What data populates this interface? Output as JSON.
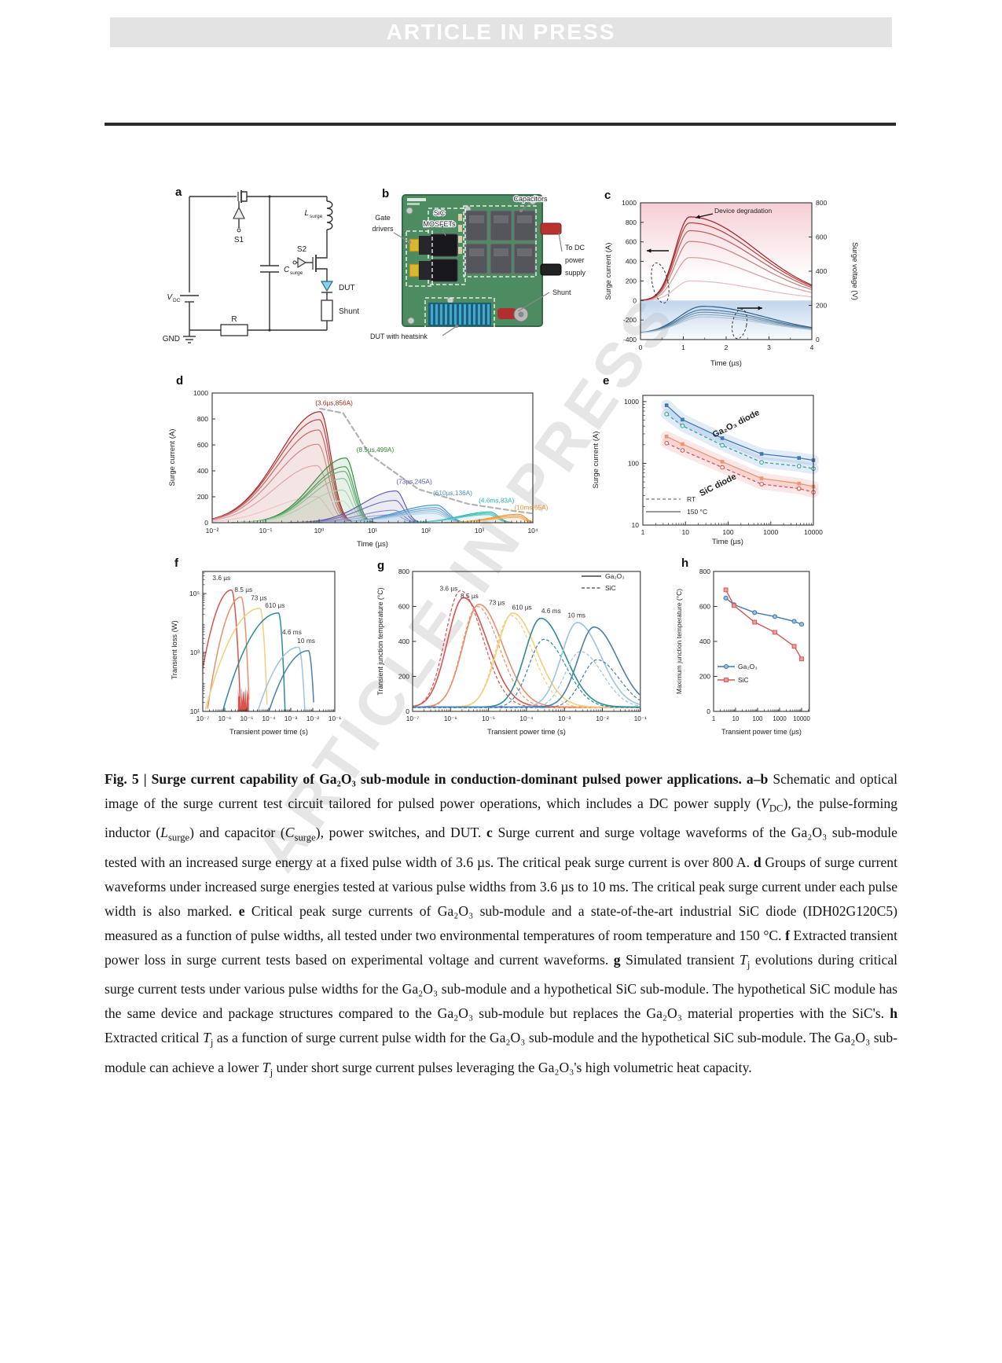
{
  "page": {
    "banner_text": "ARTICLE IN PRESS",
    "watermark_text": "ARTICLE IN PRESS"
  },
  "figure": {
    "panel_labels": {
      "a": "a",
      "b": "b",
      "c": "c",
      "d": "d",
      "e": "e",
      "f": "f",
      "g": "g",
      "h": "h"
    },
    "panels": {
      "a": {
        "texts": {
          "vdc_main": "V",
          "vdc_sub": "DC",
          "s1": "S1",
          "s2": "S2",
          "l_main": "L",
          "l_sub": "surge",
          "c_main": "C",
          "c_sub": "surge",
          "dut": "DUT",
          "shunt": "Shunt",
          "r": "R",
          "gnd": "GND"
        }
      },
      "b": {
        "callouts": {
          "gate_drivers": [
            "Gate",
            "drivers"
          ],
          "sic_mosfets": [
            "SiC",
            "MOSFETs"
          ],
          "capacitors": "Capacitors",
          "to_dc": [
            "To DC",
            "power",
            "supply"
          ],
          "shunt": "Shunt",
          "dut_heatsink": "DUT with heatsink"
        }
      }
    },
    "caption_runs": [
      {
        "t": "Fig. 5 | Surge current capability of Ga₂O₃ sub-module in conduction-dominant pulsed power applications. ",
        "b": 1
      },
      {
        "t": "a–b",
        "b": 1
      },
      {
        "t": " Schematic and optical image of the surge current test circuit tailored for pulsed power operations, which includes a DC power supply ("
      },
      {
        "t": "V",
        "i": 1
      },
      {
        "t": "DC",
        "s": 1
      },
      {
        "t": "), the pulse-forming inductor ("
      },
      {
        "t": "L",
        "i": 1
      },
      {
        "t": "surge",
        "s": 1
      },
      {
        "t": ") and capacitor ("
      },
      {
        "t": "C",
        "i": 1
      },
      {
        "t": "surge",
        "s": 1
      },
      {
        "t": "), power switches, and DUT. "
      },
      {
        "t": "c",
        "b": 1
      },
      {
        "t": " Surge current and surge voltage waveforms of the Ga₂O₃ sub-module tested with an increased surge energy at a fixed pulse width of 3.6 µs. The critical peak surge current is over 800 A. "
      },
      {
        "t": "d",
        "b": 1
      },
      {
        "t": " Groups of surge current waveforms under increased surge energies tested at various pulse widths from 3.6 µs to 10 ms. The critical peak surge current under each pulse width is also marked. "
      },
      {
        "t": "e",
        "b": 1
      },
      {
        "t": " Critical peak surge currents of Ga₂O₃ sub-module and a state-of-the-art industrial SiC diode (IDH02G120C5) measured as a function of pulse widths, all tested under two environmental temperatures of room temperature and 150 °C. "
      },
      {
        "t": "f",
        "b": 1
      },
      {
        "t": " Extracted transient power loss in surge current tests based on experimental voltage and current waveforms. "
      },
      {
        "t": "g",
        "b": 1
      },
      {
        "t": " Simulated transient "
      },
      {
        "t": "T",
        "i": 1
      },
      {
        "t": "j",
        "s": 1
      },
      {
        "t": " evolutions during critical surge current tests under various pulse widths for the Ga₂O₃ sub-module and a hypothetical SiC sub-module. The hypothetical SiC module has the same device and package structures compared to the Ga₂O₃ sub-module but replaces the Ga₂O₃ material properties with the SiC's. "
      },
      {
        "t": "h",
        "b": 1
      },
      {
        "t": " Extracted critical "
      },
      {
        "t": "T",
        "i": 1
      },
      {
        "t": "j",
        "s": 1
      },
      {
        "t": " as a function of surge current pulse width for the Ga₂O₃ sub-module and the hypothetical SiC sub-module. The Ga₂O₃ sub-module can achieve a lower "
      },
      {
        "t": "T",
        "i": 1
      },
      {
        "t": "j",
        "s": 1
      },
      {
        "t": " under short surge current pulses leveraging the Ga₂O₃'s high volumetric heat capacity."
      }
    ]
  },
  "chart_data": [
    {
      "id": "c",
      "type": "line",
      "xlabel": "Time (µs)",
      "ylabel_left": "Surge current (A)",
      "ylabel_right": "Surge voltage (V)",
      "xlim": [
        0,
        4
      ],
      "ylim_left": [
        -400,
        1000
      ],
      "ylim_right": [
        0,
        800
      ],
      "xticks": [
        0,
        1,
        2,
        3,
        4
      ],
      "yticks_left": [
        1000,
        800,
        600,
        400,
        200,
        0,
        -200,
        -400
      ],
      "yticks_right": [
        800,
        600,
        400,
        200,
        0
      ],
      "annotation": "Device degradation",
      "current_peak_time_us": 1.15,
      "current_peaks": [
        856,
        795,
        715,
        605,
        440,
        200
      ],
      "voltage_baseline_leftscale": -335,
      "voltage_bumps_leftscale": [
        -60,
        -95,
        -120,
        -145,
        -168
      ],
      "color_current": "#a82222",
      "color_voltage": "#2a5d88"
    },
    {
      "id": "d",
      "type": "line",
      "xlabel": "Time (µs)",
      "ylabel": "Surge current (A)",
      "xscale": "log",
      "xlim_log": [
        -2,
        4
      ],
      "ylim": [
        0,
        1000
      ],
      "xtick_labels": [
        "10⁻²",
        "10⁻¹",
        "10⁰",
        "10¹",
        "10²",
        "10³",
        "10⁴"
      ],
      "yticks": [
        0,
        200,
        400,
        600,
        800,
        1000
      ],
      "families": [
        {
          "label": "3.6 µs",
          "color": "#a82222",
          "tp": 0.02,
          "wL": 0.78,
          "wR": 0.2,
          "peaks": [
            856,
            795,
            715,
            605,
            440,
            200
          ],
          "annotation": "(3.6µs,856A)",
          "ann_color": "#9c2a1a",
          "ann_at": [
            0.28,
            905
          ]
        },
        {
          "label": "8.5 µs",
          "color": "#2e8b3a",
          "tp": 0.5,
          "wL": 0.62,
          "wR": 0.17,
          "peaks": [
            499,
            432,
            396,
            341,
            252,
            168
          ],
          "annotation": "(8.5µs,499A)",
          "ann_color": "#2e8b3a",
          "ann_at": [
            1.05,
            545
          ]
        },
        {
          "label": "73 µs",
          "color": "#5a5aa8",
          "tp": 1.44,
          "wL": 0.62,
          "wR": 0.16,
          "peaks": [
            245,
            172,
            96,
            62
          ],
          "annotation": "(73µs,245A)",
          "ann_color": "#5a5aa8",
          "ann_at": [
            1.78,
            300
          ]
        },
        {
          "label": "610 µs",
          "color": "#4a90c8",
          "tp": 2.2,
          "wL": 0.72,
          "wR": 0.2,
          "peaks": [
            136,
            116,
            100,
            86,
            72
          ],
          "annotation": "(610µs,136A)",
          "ann_color": "#4a90c8",
          "ann_at": [
            2.5,
            212
          ]
        },
        {
          "label": "4.6 ms",
          "color": "#26b5ad",
          "tp": 3.2,
          "wL": 0.56,
          "wR": 0.15,
          "peaks": [
            83,
            72,
            62
          ],
          "annotation": "(4.6ms,83A)",
          "ann_color": "#26b5ad",
          "ann_at": [
            3.32,
            155
          ]
        },
        {
          "label": "10 ms",
          "color": "#f0922e",
          "tp": 3.74,
          "wL": 0.5,
          "wR": 0.12,
          "peaks": [
            65,
            52,
            40
          ],
          "annotation": "(10ms,65A)",
          "ann_color": "#f0922e",
          "ann_at": [
            3.97,
            100
          ]
        }
      ],
      "envelope": [
        [
          0.02,
          880
        ],
        [
          0.45,
          845
        ],
        [
          0.95,
          525
        ],
        [
          1.86,
          258
        ],
        [
          2.79,
          145
        ],
        [
          3.66,
          90
        ],
        [
          3.98,
          72
        ]
      ]
    },
    {
      "id": "e",
      "type": "scatter-line",
      "xlabel": "Time (µs)",
      "ylabel": "Surge current (A)",
      "xscale": "log",
      "yscale": "log",
      "xtick_labels": [
        "1",
        "10",
        "100",
        "1000",
        "10000"
      ],
      "ytick_labels": [
        "10",
        "100",
        "1000"
      ],
      "x_us": [
        3.6,
        8.5,
        73,
        610,
        4600,
        10000
      ],
      "series": [
        {
          "name": "Ga₂O₃ diode 150 °C",
          "color": "#3d7ab5",
          "style": "solid",
          "marker": "square",
          "halo": "rgba(125,165,215,0.22)",
          "values": [
            870,
            510,
            255,
            142,
            122,
            112
          ]
        },
        {
          "name": "Ga₂O₃ diode RT",
          "color": "#2fa8a0",
          "style": "dashed",
          "marker": "circle",
          "halo": "rgba(125,165,215,0.22)",
          "values": [
            625,
            405,
            196,
            104,
            90,
            82
          ]
        },
        {
          "name": "SiC diode 150 °C",
          "color": "#ef9569",
          "style": "solid",
          "marker": "square",
          "halo": "rgba(240,160,160,0.25)",
          "values": [
            272,
            205,
            106,
            57,
            47,
            42
          ]
        },
        {
          "name": "SiC diode RT",
          "color": "#d9534f",
          "style": "dashed",
          "marker": "circle",
          "halo": "rgba(240,160,160,0.25)",
          "values": [
            212,
            162,
            86,
            46,
            39,
            34
          ]
        }
      ],
      "group_labels": [
        {
          "text": "Ga₂O₃ diode"
        },
        {
          "text": "SiC diode"
        }
      ],
      "legend": [
        {
          "text": "RT",
          "style": "dashed"
        },
        {
          "text": "150 °C",
          "style": "solid"
        }
      ]
    },
    {
      "id": "f",
      "type": "line",
      "xlabel": "Transient power time (s)",
      "ylabel": "Transient loss (W)",
      "xscale": "log",
      "yscale": "log",
      "xtick_labels": [
        "10⁻⁷",
        "10⁻⁶",
        "10⁻⁵",
        "10⁻⁴",
        "10⁻³",
        "10⁻²",
        "10⁻¹"
      ],
      "ytick_labels": [
        "10¹",
        "10³",
        "10⁵"
      ],
      "curves": [
        {
          "label": "3.6 µs",
          "color": "#d9534f",
          "tp": -5.7,
          "logP": 5.12,
          "kL": 1.58,
          "kR": 23.4,
          "lab_at": [
            -6.15,
            5.45
          ]
        },
        {
          "label": "8.5 µs",
          "color": "#e8906a",
          "tp": -5.26,
          "logP": 4.88,
          "kL": 1.64,
          "kR": 26.9,
          "lab_at": [
            -5.15,
            5.05
          ]
        },
        {
          "label": "73 µs",
          "color": "#f2cf7e",
          "tp": -4.4,
          "logP": 4.5,
          "kL": 0.56,
          "kR": 32,
          "lab_at": [
            -4.45,
            4.78
          ]
        },
        {
          "label": "610 µs",
          "color": "#2e8b9a",
          "tp": -3.56,
          "logP": 4.34,
          "kL": 0.52,
          "kR": 37,
          "lab_at": [
            -3.72,
            4.52
          ]
        },
        {
          "label": "4.6 ms",
          "color": "#9cc3e0",
          "tp": -2.64,
          "logP": 3.18,
          "kL": 0.63,
          "kR": 27.8,
          "lab_at": [
            -2.95,
            3.62
          ]
        },
        {
          "label": "10 ms",
          "color": "#4a7fae",
          "tp": -2.2,
          "logP": 3.06,
          "kL": 0.64,
          "kR": 30.5,
          "lab_at": [
            -2.3,
            3.32
          ]
        }
      ]
    },
    {
      "id": "g",
      "type": "line",
      "xlabel": "Transient power time (s)",
      "ylabel": "Transient junction temperature (°C)",
      "xscale": "log",
      "ylim": [
        0,
        800
      ],
      "xtick_labels": [
        "10⁻⁷",
        "10⁻⁶",
        "10⁻⁵",
        "10⁻⁴",
        "10⁻³",
        "10⁻²",
        "10⁻¹"
      ],
      "yticks": [
        0,
        200,
        400,
        600,
        800
      ],
      "legend": [
        {
          "text": "Ga₂O₃",
          "style": "solid"
        },
        {
          "text": "SiC",
          "style": "dashed"
        }
      ],
      "pairs": [
        {
          "label": "3.6 µs",
          "color": "#d9534f",
          "tp_ga": -5.66,
          "peak_ga": 650,
          "tp_sic": -5.74,
          "peak_sic": 690,
          "lab_at": [
            -6.05,
            690
          ]
        },
        {
          "label": "8.5 µs",
          "color": "#e8906a",
          "tp_ga": -5.25,
          "peak_ga": 612,
          "tp_sic": -5.3,
          "peak_sic": 600,
          "lab_at": [
            -5.5,
            648
          ]
        },
        {
          "label": "73 µs",
          "color": "#f2cf7e",
          "tp_ga": -4.36,
          "peak_ga": 562,
          "tp_sic": -4.42,
          "peak_sic": 548,
          "lab_at": [
            -4.78,
            608
          ]
        },
        {
          "label": "610 µs",
          "color": "#2e8b9a",
          "tp_ga": -3.62,
          "peak_ga": 532,
          "tp_sic": -3.54,
          "peak_sic": 412,
          "lab_at": [
            -4.12,
            583
          ]
        },
        {
          "label": "4.6 ms",
          "color": "#9cc3e0",
          "tp_ga": -2.66,
          "peak_ga": 508,
          "tp_sic": -2.58,
          "peak_sic": 342,
          "lab_at": [
            -3.35,
            562
          ]
        },
        {
          "label": "10 ms",
          "color": "#4a7fae",
          "tp_ga": -2.22,
          "peak_ga": 482,
          "tp_sic": -2.14,
          "peak_sic": 295,
          "lab_at": [
            -2.68,
            538
          ]
        }
      ]
    },
    {
      "id": "h",
      "type": "scatter-line",
      "xlabel": "Transient power time (µs)",
      "ylabel": "Maximum junction temperature (°C)",
      "xscale": "log",
      "ylim": [
        0,
        800
      ],
      "xtick_labels": [
        "1",
        "10",
        "100",
        "1000",
        "10000"
      ],
      "yticks": [
        0,
        200,
        400,
        600,
        800
      ],
      "x_us": [
        3.6,
        8.5,
        73,
        610,
        4600,
        10000
      ],
      "series": [
        {
          "name": "Ga₂O₃",
          "color": "#3d7ab5",
          "marker": "circle",
          "values": [
            648,
            610,
            565,
            542,
            515,
            498
          ]
        },
        {
          "name": "SiC",
          "color": "#d9534f",
          "marker": "square",
          "values": [
            695,
            605,
            510,
            452,
            372,
            300
          ]
        }
      ]
    }
  ]
}
